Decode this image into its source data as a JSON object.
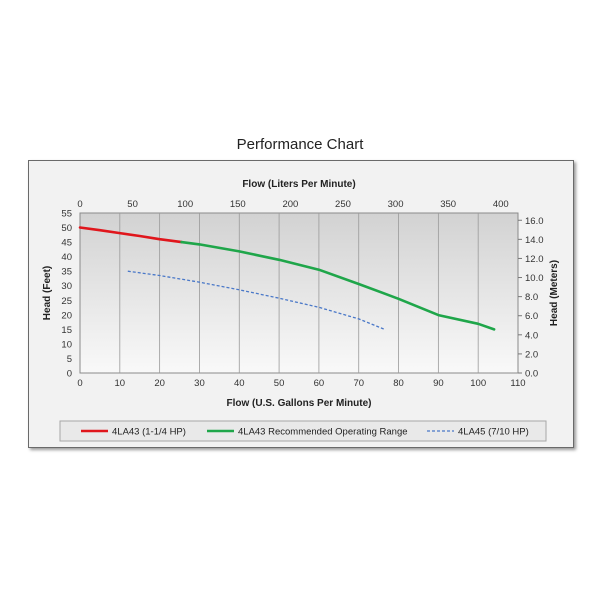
{
  "page": {
    "title": "Performance Chart"
  },
  "chart_data": {
    "type": "line",
    "title": "Performance Chart",
    "xlabel": "Flow (U.S. Gallons Per Minute)",
    "x2label": "Flow (Liters Per Minute)",
    "ylabel": "Head (Feet)",
    "y2label": "Head (Meters)",
    "xlim": [
      0,
      110
    ],
    "ylim": [
      0,
      55
    ],
    "x2lim": [
      0,
      416.4
    ],
    "y2lim": [
      0,
      16.76
    ],
    "x_ticks": [
      0,
      10,
      20,
      30,
      40,
      50,
      60,
      70,
      80,
      90,
      100,
      110
    ],
    "y_ticks": [
      0,
      5,
      10,
      15,
      20,
      25,
      30,
      35,
      40,
      45,
      50,
      55
    ],
    "x2_ticks": [
      0,
      50,
      100,
      150,
      200,
      250,
      300,
      350,
      400
    ],
    "y2_ticks": [
      "0.0",
      "2.0",
      "4.0",
      "6.0",
      "8.0",
      "10.0",
      "12.0",
      "14.0",
      "16.0"
    ],
    "grid": true,
    "legend_position": "bottom",
    "series": [
      {
        "name": "4LA43 (1-1/4 HP)",
        "color": "#e0161c",
        "style": "solid",
        "x": [
          0,
          5,
          10,
          15,
          20,
          25.5
        ],
        "y": [
          50,
          49.1,
          48.1,
          47.1,
          46,
          45
        ]
      },
      {
        "name": "4LA43 Recommended Operating Range",
        "color": "#1fa64a",
        "style": "solid",
        "x": [
          25.5,
          30,
          40,
          50,
          60,
          70,
          80,
          90,
          100,
          104
        ],
        "y": [
          45,
          44.2,
          41.8,
          38.9,
          35.5,
          30.6,
          25.5,
          19.9,
          16.9,
          15
        ]
      },
      {
        "name": "4LA45 (7/10 HP)",
        "color": "#4a78c8",
        "style": "dashed",
        "x": [
          12,
          20,
          30,
          40,
          50,
          60,
          70,
          76.5
        ],
        "y": [
          35,
          33.5,
          31.2,
          28.6,
          25.7,
          22.6,
          18.6,
          15
        ]
      }
    ]
  }
}
